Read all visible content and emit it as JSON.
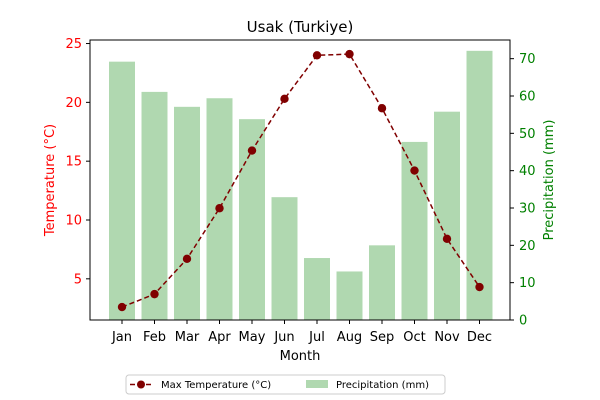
{
  "chart_data": {
    "type": "bar+line",
    "title": "Usak (Turkiye)",
    "xlabel": "Month",
    "categories": [
      "Jan",
      "Feb",
      "Mar",
      "Apr",
      "May",
      "Jun",
      "Jul",
      "Aug",
      "Sep",
      "Oct",
      "Nov",
      "Dec"
    ],
    "left_axis": {
      "label": "Temperature (°C)",
      "ylim": [
        1.5,
        25.3
      ],
      "ticks": [
        5,
        10,
        15,
        20,
        25
      ],
      "color": "#ff0000"
    },
    "right_axis": {
      "label": "Precipitation (mm)",
      "ylim": [
        0,
        75
      ],
      "ticks": [
        0,
        10,
        20,
        30,
        40,
        50,
        60,
        70
      ],
      "color": "#008000"
    },
    "series": [
      {
        "name": "Max Temperature (°C)",
        "type": "line",
        "axis": "left",
        "color": "#800000",
        "line_style": "dashed",
        "marker": "circle",
        "values": [
          2.6,
          3.7,
          6.7,
          11.0,
          15.9,
          20.3,
          24.0,
          24.1,
          19.5,
          14.2,
          8.4,
          4.3
        ]
      },
      {
        "name": "Precipitation (mm)",
        "type": "bar",
        "axis": "right",
        "color": "#b0d8b0",
        "values": [
          69.2,
          61.1,
          57.1,
          59.4,
          53.8,
          32.9,
          16.6,
          13.0,
          20.0,
          47.7,
          55.8,
          72.1
        ]
      }
    ],
    "legend": {
      "placement": "bottom-center",
      "entries": [
        "Max Temperature (°C)",
        "Precipitation (mm)"
      ]
    },
    "grid": false
  }
}
